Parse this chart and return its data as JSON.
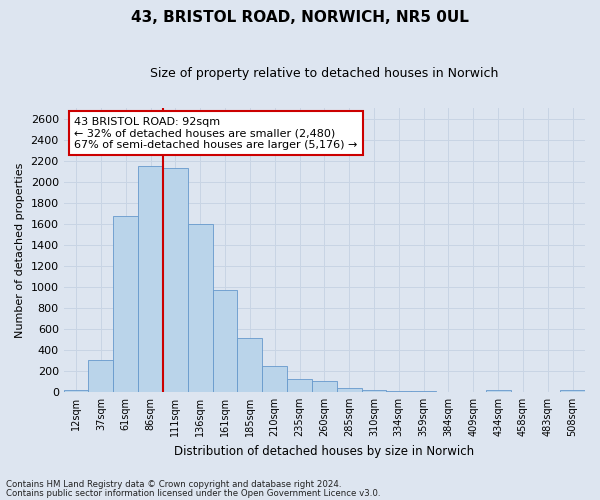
{
  "title1": "43, BRISTOL ROAD, NORWICH, NR5 0UL",
  "title2": "Size of property relative to detached houses in Norwich",
  "xlabel": "Distribution of detached houses by size in Norwich",
  "ylabel": "Number of detached properties",
  "categories": [
    "12sqm",
    "37sqm",
    "61sqm",
    "86sqm",
    "111sqm",
    "136sqm",
    "161sqm",
    "185sqm",
    "210sqm",
    "235sqm",
    "260sqm",
    "285sqm",
    "310sqm",
    "334sqm",
    "359sqm",
    "384sqm",
    "409sqm",
    "434sqm",
    "458sqm",
    "483sqm",
    "508sqm"
  ],
  "values": [
    20,
    300,
    1670,
    2150,
    2130,
    1600,
    970,
    510,
    250,
    125,
    100,
    40,
    20,
    10,
    8,
    0,
    0,
    20,
    0,
    0,
    20
  ],
  "bar_color": "#bad4ea",
  "bar_edgecolor": "#6699cc",
  "vline_color": "#cc0000",
  "vline_x_index": 4,
  "annotation_text": "43 BRISTOL ROAD: 92sqm\n← 32% of detached houses are smaller (2,480)\n67% of semi-detached houses are larger (5,176) →",
  "annotation_box_facecolor": "#ffffff",
  "annotation_box_edgecolor": "#cc0000",
  "ylim": [
    0,
    2700
  ],
  "yticks": [
    0,
    200,
    400,
    600,
    800,
    1000,
    1200,
    1400,
    1600,
    1800,
    2000,
    2200,
    2400,
    2600
  ],
  "grid_color": "#c8d4e4",
  "background_color": "#dde5f0",
  "title1_fontsize": 11,
  "title2_fontsize": 9,
  "footnote1": "Contains HM Land Registry data © Crown copyright and database right 2024.",
  "footnote2": "Contains public sector information licensed under the Open Government Licence v3.0."
}
